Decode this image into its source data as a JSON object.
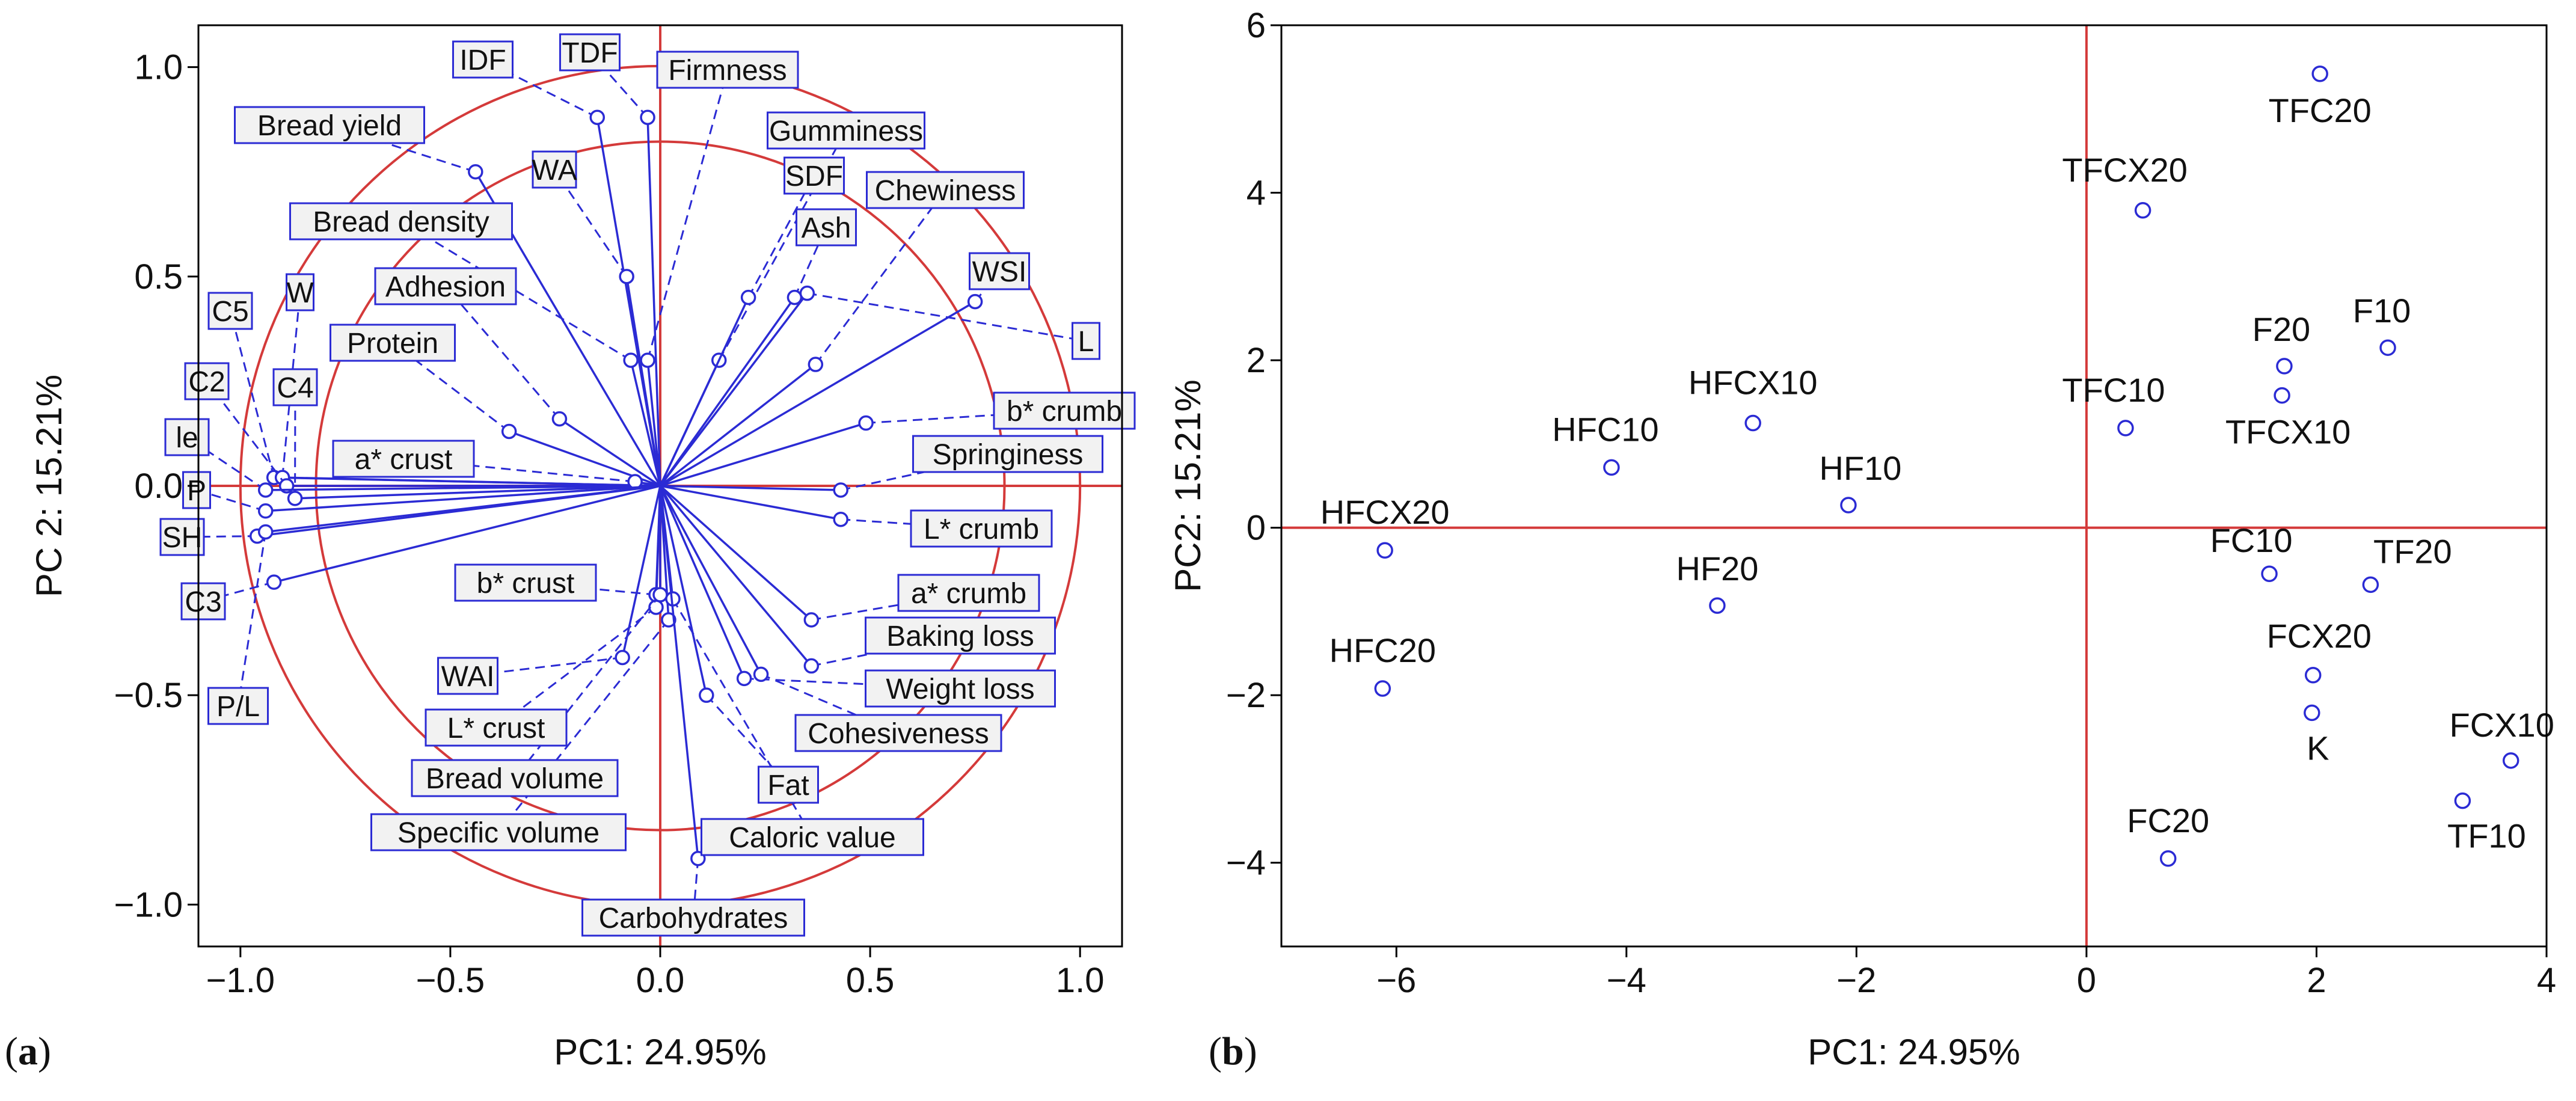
{
  "colors": {
    "loading": "#2b2bd4",
    "circle": "#d43a3a",
    "axis": "#d43a3a",
    "label_border": "#2b2bd4",
    "label_fill": "#f2f2f2",
    "point": "#2b2bd4"
  },
  "panels": [
    {
      "letter": "(a)",
      "bold": "a"
    },
    {
      "letter": "(b)",
      "bold": "b"
    }
  ],
  "chart_data": [
    {
      "type": "scatter",
      "title": "",
      "xlabel": "PC1: 24.95%",
      "ylabel": "PC 2: 15.21%",
      "xlim": [
        -1.1,
        1.1
      ],
      "ylim": [
        -1.1,
        1.1
      ],
      "xticks": [
        -1.0,
        -0.5,
        0.0,
        0.5,
        1.0
      ],
      "xtick_labels": [
        "−1.0",
        "−0.5",
        "0.0",
        "0.5",
        "1.0"
      ],
      "yticks": [
        -1.0,
        -0.5,
        0.0,
        0.5,
        1.0
      ],
      "ytick_labels": [
        "−1.0",
        "−0.5",
        "0.0",
        "0.5",
        "1.0"
      ],
      "circles_radius": [
        1.0,
        0.82
      ],
      "loadings": [
        {
          "name": "IDF",
          "x": -0.15,
          "y": 0.88
        },
        {
          "name": "TDF",
          "x": -0.03,
          "y": 0.88
        },
        {
          "name": "Firmness",
          "x": -0.03,
          "y": 0.3
        },
        {
          "name": "Bread yield",
          "x": -0.44,
          "y": 0.75
        },
        {
          "name": "Gumminess",
          "x": 0.14,
          "y": 0.3
        },
        {
          "name": "WA",
          "x": -0.08,
          "y": 0.5
        },
        {
          "name": "SDF",
          "x": 0.21,
          "y": 0.45
        },
        {
          "name": "Bread density",
          "x": -0.07,
          "y": 0.3
        },
        {
          "name": "Ash",
          "x": 0.32,
          "y": 0.45
        },
        {
          "name": "Chewiness",
          "x": 0.37,
          "y": 0.29
        },
        {
          "name": "Adhesion",
          "x": -0.24,
          "y": 0.16
        },
        {
          "name": "WSI",
          "x": 0.75,
          "y": 0.44
        },
        {
          "name": "C5",
          "x": -0.92,
          "y": 0.02
        },
        {
          "name": "W",
          "x": -0.9,
          "y": 0.02
        },
        {
          "name": "L",
          "x": 0.35,
          "y": 0.46
        },
        {
          "name": "Protein",
          "x": -0.36,
          "y": 0.13
        },
        {
          "name": "C2",
          "x": -0.89,
          "y": 0.0
        },
        {
          "name": "C4",
          "x": -0.87,
          "y": -0.03
        },
        {
          "name": "b* crumb",
          "x": 0.49,
          "y": 0.15
        },
        {
          "name": "le",
          "x": -0.94,
          "y": -0.01
        },
        {
          "name": "a* crust",
          "x": -0.06,
          "y": 0.01
        },
        {
          "name": "Springiness",
          "x": 0.43,
          "y": -0.01
        },
        {
          "name": "P",
          "x": -0.94,
          "y": -0.06
        },
        {
          "name": "SH",
          "x": -0.96,
          "y": -0.12
        },
        {
          "name": "L* crumb",
          "x": 0.43,
          "y": -0.08
        },
        {
          "name": "C3",
          "x": -0.92,
          "y": -0.23
        },
        {
          "name": "b* crust",
          "x": -0.01,
          "y": -0.26
        },
        {
          "name": "a* crumb",
          "x": 0.36,
          "y": -0.32
        },
        {
          "name": "Baking loss",
          "x": 0.36,
          "y": -0.43
        },
        {
          "name": "P/L",
          "x": -0.94,
          "y": -0.11
        },
        {
          "name": "WAI",
          "x": -0.09,
          "y": -0.41
        },
        {
          "name": "Weight loss",
          "x": 0.2,
          "y": -0.46
        },
        {
          "name": "L* crust",
          "x": -0.01,
          "y": -0.29
        },
        {
          "name": "Cohesiveness",
          "x": 0.24,
          "y": -0.45
        },
        {
          "name": "Bread volume",
          "x": 0.0,
          "y": -0.26
        },
        {
          "name": "Fat",
          "x": 0.11,
          "y": -0.5
        },
        {
          "name": "Specific volume",
          "x": 0.02,
          "y": -0.32
        },
        {
          "name": "Caloric value",
          "x": 0.03,
          "y": -0.27
        },
        {
          "name": "Carbohydrates",
          "x": 0.09,
          "y": -0.89
        }
      ]
    },
    {
      "type": "scatter",
      "title": "",
      "xlabel": "PC1: 24.95%",
      "ylabel": "PC2: 15.21%",
      "xlim": [
        -7,
        4
      ],
      "ylim": [
        -5,
        6
      ],
      "xticks": [
        -6,
        -4,
        -2,
        0,
        2,
        4
      ],
      "xtick_labels": [
        "−6",
        "−4",
        "−2",
        "0",
        "2",
        "4"
      ],
      "yticks": [
        -4,
        -2,
        0,
        2,
        4,
        6
      ],
      "ytick_labels": [
        "−4",
        "−2",
        "0",
        "2",
        "4",
        "6"
      ],
      "points": [
        {
          "name": "TFC20",
          "x": 2.03,
          "y": 5.42
        },
        {
          "name": "TFCX20",
          "x": 0.49,
          "y": 3.79
        },
        {
          "name": "F10",
          "x": 2.62,
          "y": 2.15
        },
        {
          "name": "F20",
          "x": 1.72,
          "y": 1.93
        },
        {
          "name": "TFCX10",
          "x": 1.7,
          "y": 1.58
        },
        {
          "name": "TFC10",
          "x": 0.34,
          "y": 1.19
        },
        {
          "name": "HFCX10",
          "x": -2.9,
          "y": 1.25
        },
        {
          "name": "HFC10",
          "x": -4.13,
          "y": 0.72
        },
        {
          "name": "HF10",
          "x": -2.07,
          "y": 0.27
        },
        {
          "name": "HFCX20",
          "x": -6.1,
          "y": -0.27
        },
        {
          "name": "FC10",
          "x": 1.59,
          "y": -0.55
        },
        {
          "name": "TF20",
          "x": 2.47,
          "y": -0.68
        },
        {
          "name": "HF20",
          "x": -3.21,
          "y": -0.93
        },
        {
          "name": "FCX20",
          "x": 1.97,
          "y": -1.76
        },
        {
          "name": "HFC20",
          "x": -6.12,
          "y": -1.92
        },
        {
          "name": "K",
          "x": 1.96,
          "y": -2.21
        },
        {
          "name": "FCX10",
          "x": 3.69,
          "y": -2.78
        },
        {
          "name": "TF10",
          "x": 3.27,
          "y": -3.26
        },
        {
          "name": "FC20",
          "x": 0.71,
          "y": -3.95
        }
      ]
    }
  ]
}
